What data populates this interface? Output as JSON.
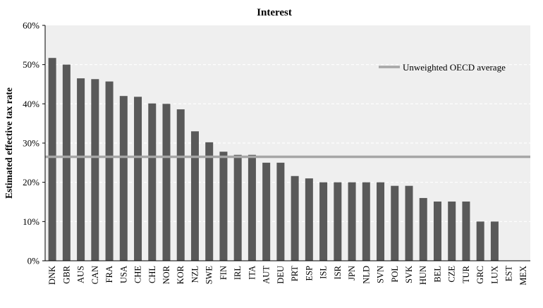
{
  "chart_data": {
    "type": "bar",
    "title": "Interest",
    "xlabel": "",
    "ylabel": "Estimated effective tax rate",
    "ylim": [
      0,
      60
    ],
    "yticks": [
      "0%",
      "10%",
      "20%",
      "30%",
      "40%",
      "50%",
      "60%"
    ],
    "grid": true,
    "legend_position": "top-right",
    "categories": [
      "DNK",
      "GBR",
      "AUS",
      "CAN",
      "FRA",
      "USA",
      "CHE",
      "CHL",
      "NOR",
      "KOR",
      "NZL",
      "SWE",
      "FIN",
      "IRL",
      "ITA",
      "AUT",
      "DEU",
      "PRT",
      "ESP",
      "ISL",
      "ISR",
      "JPN",
      "NLD",
      "SVN",
      "POL",
      "SVK",
      "HUN",
      "BEL",
      "CZE",
      "TUR",
      "GRC",
      "LUX",
      "EST",
      "MEX"
    ],
    "values": [
      51.7,
      50.0,
      46.5,
      46.3,
      45.7,
      42.0,
      41.8,
      40.1,
      40.0,
      38.6,
      33.0,
      30.2,
      27.8,
      27.0,
      27.0,
      25.0,
      25.0,
      21.6,
      21.0,
      20.0,
      20.0,
      20.0,
      20.0,
      20.0,
      19.1,
      19.1,
      16.0,
      15.1,
      15.1,
      15.1,
      10.0,
      10.0,
      0,
      0
    ],
    "average_line": {
      "name": "Unweighted OECD average",
      "value": 26.5
    },
    "colors": {
      "bar": "#595959",
      "average": "#a6a6a6",
      "plot_bg": "#efefef",
      "grid": "#ffffff"
    }
  }
}
